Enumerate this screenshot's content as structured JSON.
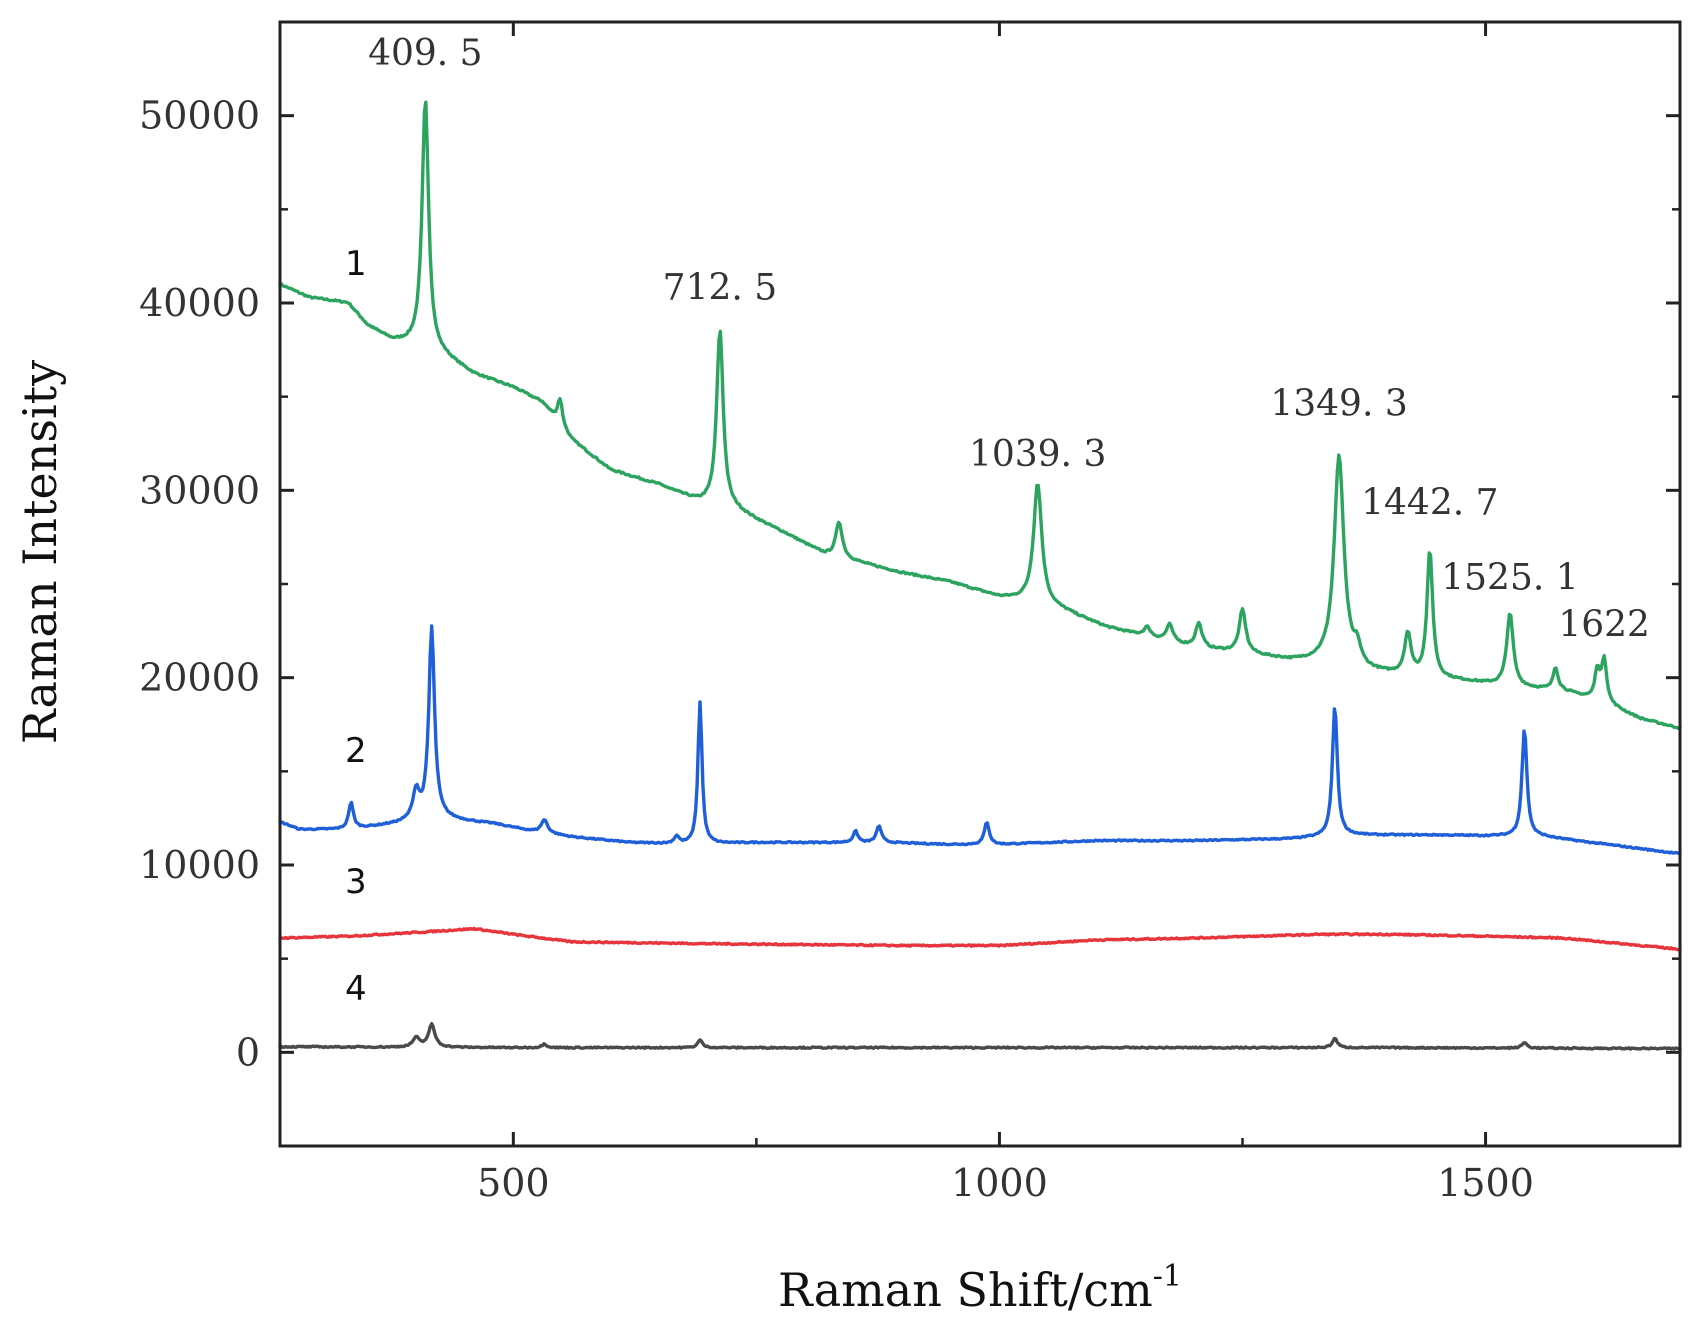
{
  "chart_data": {
    "type": "line",
    "xlabel": "Raman Shift/cm",
    "xlabel_sup": "-1",
    "ylabel": "Raman Intensity",
    "xlim": [
      260,
      1700
    ],
    "ylim": [
      -5000,
      55000
    ],
    "xticks": [
      500,
      1000,
      1500
    ],
    "xtick_labels": [
      "500",
      "1000",
      "1500"
    ],
    "yticks": [
      0,
      10000,
      20000,
      30000,
      40000,
      50000
    ],
    "ytick_labels": [
      "0",
      "10000",
      "20000",
      "30000",
      "40000",
      "50000"
    ],
    "grid": false,
    "series": [
      {
        "name": "1",
        "color": "#2ca45f",
        "label_pos": [
          338,
          41500
        ],
        "baseline": [
          [
            260,
            41000
          ],
          [
            290,
            40300
          ],
          [
            330,
            40000
          ],
          [
            350,
            38800
          ],
          [
            375,
            38000
          ],
          [
            400,
            37700
          ],
          [
            430,
            37100
          ],
          [
            460,
            36200
          ],
          [
            500,
            35500
          ],
          [
            530,
            34700
          ],
          [
            560,
            32700
          ],
          [
            600,
            31100
          ],
          [
            650,
            30300
          ],
          [
            690,
            29400
          ],
          [
            730,
            28900
          ],
          [
            780,
            27700
          ],
          [
            820,
            26600
          ],
          [
            900,
            25600
          ],
          [
            950,
            25100
          ],
          [
            1000,
            24300
          ],
          [
            1040,
            24000
          ],
          [
            1070,
            23500
          ],
          [
            1110,
            22700
          ],
          [
            1150,
            22200
          ],
          [
            1200,
            21600
          ],
          [
            1250,
            21300
          ],
          [
            1300,
            20900
          ],
          [
            1330,
            20800
          ],
          [
            1380,
            20300
          ],
          [
            1430,
            20000
          ],
          [
            1480,
            19800
          ],
          [
            1530,
            19500
          ],
          [
            1580,
            19300
          ],
          [
            1620,
            18700
          ],
          [
            1660,
            17800
          ],
          [
            1700,
            17300
          ]
        ],
        "peaks": [
          [
            409.5,
            13400,
            4
          ],
          [
            548,
            1400,
            3
          ],
          [
            712.5,
            9500,
            4
          ],
          [
            835,
            1900,
            4
          ],
          [
            1039.3,
            6400,
            5
          ],
          [
            1152,
            500,
            4
          ],
          [
            1175,
            900,
            4
          ],
          [
            1205,
            1300,
            4
          ],
          [
            1250,
            2300,
            4
          ],
          [
            1349.3,
            11200,
            6
          ],
          [
            1368,
            900,
            4
          ],
          [
            1420,
            2200,
            4
          ],
          [
            1442.7,
            6800,
            3.5
          ],
          [
            1525.1,
            3900,
            4
          ],
          [
            1572,
            1200,
            3
          ],
          [
            1615,
            1600,
            3
          ],
          [
            1622,
            2300,
            3
          ]
        ]
      },
      {
        "name": "2",
        "color": "#1f5fd8",
        "label_pos": [
          338,
          15500
        ],
        "baseline": [
          [
            260,
            12300
          ],
          [
            280,
            11900
          ],
          [
            330,
            11900
          ],
          [
            380,
            12200
          ],
          [
            420,
            12500
          ],
          [
            480,
            12200
          ],
          [
            520,
            11800
          ],
          [
            560,
            11500
          ],
          [
            620,
            11200
          ],
          [
            680,
            11100
          ],
          [
            750,
            11200
          ],
          [
            800,
            11200
          ],
          [
            880,
            11200
          ],
          [
            950,
            11100
          ],
          [
            1000,
            11100
          ],
          [
            1100,
            11300
          ],
          [
            1200,
            11300
          ],
          [
            1300,
            11400
          ],
          [
            1360,
            11600
          ],
          [
            1450,
            11600
          ],
          [
            1560,
            11500
          ],
          [
            1640,
            11000
          ],
          [
            1700,
            10600
          ]
        ],
        "peaks": [
          [
            333,
            1400,
            3
          ],
          [
            400,
            1500,
            4
          ],
          [
            416,
            10200,
            3.5
          ],
          [
            532,
            700,
            4
          ],
          [
            668,
            400,
            3
          ],
          [
            692,
            7600,
            2.5
          ],
          [
            852,
            600,
            3
          ],
          [
            876,
            900,
            3
          ],
          [
            987,
            1200,
            3
          ],
          [
            1345,
            7000,
            3
          ],
          [
            1540,
            5800,
            3
          ]
        ]
      },
      {
        "name": "3",
        "color": "#e6353d",
        "label_pos": [
          338,
          8500
        ],
        "baseline": [
          [
            260,
            6100
          ],
          [
            330,
            6200
          ],
          [
            400,
            6400
          ],
          [
            460,
            6600
          ],
          [
            500,
            6300
          ],
          [
            560,
            5900
          ],
          [
            700,
            5800
          ],
          [
            900,
            5700
          ],
          [
            1000,
            5700
          ],
          [
            1100,
            6000
          ],
          [
            1200,
            6100
          ],
          [
            1330,
            6300
          ],
          [
            1400,
            6300
          ],
          [
            1500,
            6200
          ],
          [
            1580,
            6100
          ],
          [
            1640,
            5800
          ],
          [
            1700,
            5500
          ]
        ],
        "peaks": []
      },
      {
        "name": "4",
        "color": "#4a4a4a",
        "label_pos": [
          338,
          2800
        ],
        "baseline": [
          [
            260,
            300
          ],
          [
            500,
            250
          ],
          [
            800,
            250
          ],
          [
            1100,
            250
          ],
          [
            1400,
            250
          ],
          [
            1700,
            200
          ]
        ],
        "peaks": [
          [
            400,
            500,
            4
          ],
          [
            416,
            1200,
            4
          ],
          [
            532,
            200,
            3
          ],
          [
            692,
            400,
            3
          ],
          [
            1345,
            500,
            3
          ],
          [
            1540,
            300,
            3
          ]
        ]
      }
    ],
    "annotations": [
      {
        "text": "409. 5",
        "x": 409.5,
        "y": 52700
      },
      {
        "text": "712. 5",
        "x": 712.5,
        "y": 40200
      },
      {
        "text": "1039. 3",
        "x": 1039.3,
        "y": 31300
      },
      {
        "text": "1349. 3",
        "x": 1349.3,
        "y": 34000
      },
      {
        "text": "1442. 7",
        "x": 1442.7,
        "y": 28700
      },
      {
        "text": "1525. 1",
        "x": 1525.1,
        "y": 24700
      },
      {
        "text": "1622",
        "x": 1622,
        "y": 22200
      }
    ]
  }
}
